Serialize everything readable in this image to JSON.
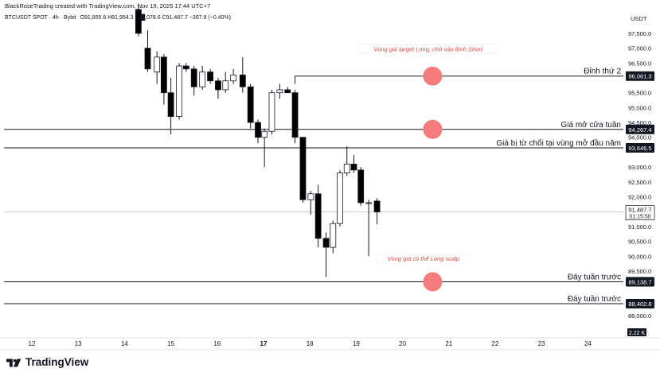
{
  "header": {
    "attribution": "BlackRoseTrading created with TradingView.com, Nov 19, 2025 17:44 UTC+7",
    "symbol": "BTCUSDT SPOT · 4h · Bybit",
    "ohlc": "O91,855.6  H91,954.3  L9█,078.6  C91,487.7  −367.9 (−0.40%)"
  },
  "logo": {
    "text": "TradingView"
  },
  "chart_data": {
    "type": "candlestick",
    "currency_label": "USDT",
    "y_range": [
      87600,
      98300
    ],
    "y_ticks": [
      "97,500.0",
      "97,000.0",
      "96,500.0",
      "96,000.0",
      "95,500.0",
      "95,000.0",
      "94,500.0",
      "94,000.0",
      "93,500.0",
      "93,000.0",
      "92,500.0",
      "92,000.0",
      "91,500.0",
      "91,000.0",
      "90,500.0",
      "90,000.0",
      "89,500.0",
      "89,000.0",
      "88,500.0",
      "88,000.0"
    ],
    "x_ticks": [
      "12",
      "13",
      "14",
      "15",
      "16",
      "17",
      "18",
      "19",
      "20",
      "21",
      "22",
      "23",
      "24"
    ],
    "x_ticks_bold": [
      "17"
    ],
    "candles": [
      {
        "x": 14.3,
        "o": 98300,
        "h": 98500,
        "l": 97400,
        "c": 97500
      },
      {
        "x": 14.5,
        "o": 97000,
        "h": 97600,
        "l": 96200,
        "c": 96300
      },
      {
        "x": 14.7,
        "o": 96200,
        "h": 96900,
        "l": 95800,
        "c": 96700
      },
      {
        "x": 14.85,
        "o": 96700,
        "h": 96800,
        "l": 95100,
        "c": 95500
      },
      {
        "x": 15.0,
        "o": 95500,
        "h": 96000,
        "l": 94100,
        "c": 94700
      },
      {
        "x": 15.18,
        "o": 94700,
        "h": 96500,
        "l": 94600,
        "c": 96400
      },
      {
        "x": 15.33,
        "o": 96400,
        "h": 96500,
        "l": 96200,
        "c": 96300
      },
      {
        "x": 15.5,
        "o": 96300,
        "h": 96400,
        "l": 95400,
        "c": 95700
      },
      {
        "x": 15.68,
        "o": 95700,
        "h": 96400,
        "l": 95600,
        "c": 96200
      },
      {
        "x": 15.85,
        "o": 96200,
        "h": 96300,
        "l": 95800,
        "c": 95900
      },
      {
        "x": 16.02,
        "o": 95900,
        "h": 96000,
        "l": 95300,
        "c": 95600
      },
      {
        "x": 16.18,
        "o": 95600,
        "h": 96200,
        "l": 95500,
        "c": 95900
      },
      {
        "x": 16.35,
        "o": 95900,
        "h": 96300,
        "l": 95800,
        "c": 96100
      },
      {
        "x": 16.55,
        "o": 96100,
        "h": 96700,
        "l": 95500,
        "c": 95700
      },
      {
        "x": 16.72,
        "o": 95700,
        "h": 95800,
        "l": 94300,
        "c": 94500
      },
      {
        "x": 16.88,
        "o": 94500,
        "h": 94600,
        "l": 93800,
        "c": 94000
      },
      {
        "x": 17.02,
        "o": 94000,
        "h": 94300,
        "l": 93000,
        "c": 94200
      },
      {
        "x": 17.18,
        "o": 94200,
        "h": 95600,
        "l": 94100,
        "c": 95500
      },
      {
        "x": 17.35,
        "o": 95500,
        "h": 95800,
        "l": 95300,
        "c": 95600
      },
      {
        "x": 17.52,
        "o": 95600,
        "h": 95700,
        "l": 95500,
        "c": 95500
      },
      {
        "x": 17.68,
        "o": 95500,
        "h": 95600,
        "l": 93800,
        "c": 94000
      },
      {
        "x": 17.85,
        "o": 94000,
        "h": 94000,
        "l": 91800,
        "c": 91900
      },
      {
        "x": 18.02,
        "o": 91900,
        "h": 92200,
        "l": 91400,
        "c": 92100
      },
      {
        "x": 18.18,
        "o": 92100,
        "h": 92400,
        "l": 90300,
        "c": 90600
      },
      {
        "x": 18.35,
        "o": 90600,
        "h": 90800,
        "l": 89300,
        "c": 90300
      },
      {
        "x": 18.5,
        "o": 90300,
        "h": 91200,
        "l": 90100,
        "c": 91100
      },
      {
        "x": 18.65,
        "o": 91100,
        "h": 92900,
        "l": 91000,
        "c": 92800
      },
      {
        "x": 18.8,
        "o": 92800,
        "h": 93700,
        "l": 92700,
        "c": 93100
      },
      {
        "x": 18.95,
        "o": 93100,
        "h": 93400,
        "l": 92800,
        "c": 92900
      },
      {
        "x": 19.1,
        "o": 92900,
        "h": 93000,
        "l": 91700,
        "c": 91800
      },
      {
        "x": 19.27,
        "o": 91800,
        "h": 91900,
        "l": 90000,
        "c": 91800
      },
      {
        "x": 19.45,
        "o": 91855.6,
        "h": 91954.3,
        "l": 91078.6,
        "c": 91487.7
      }
    ],
    "levels": [
      {
        "price": 96061.3,
        "label": "Đỉnh thứ 2",
        "tag": "96,061.3",
        "start_x": 17.68
      },
      {
        "price": 94267.4,
        "label": "Giá mở cửa tuần",
        "tag": "94,267.4",
        "start_x": 11.4
      },
      {
        "price": 93646.5,
        "label": "Giá bị từ chối tại vùng mở đầu năm",
        "tag": "93,646.5",
        "start_x": 11.4
      },
      {
        "price": 89138.7,
        "label": "Đáy tuần trước",
        "tag": "89,138.7",
        "start_x": 11.4
      },
      {
        "price": 88402.8,
        "label": "Đáy tuần trước",
        "tag": "88,402.8",
        "start_x": 11.4
      }
    ],
    "markers": [
      {
        "x": 20.65,
        "price": 96061.3,
        "color": "#f47c7c"
      },
      {
        "x": 20.65,
        "price": 94267.4,
        "color": "#f47c7c"
      },
      {
        "x": 20.65,
        "price": 89138.7,
        "color": "#f47c7c"
      }
    ],
    "notes": [
      {
        "text": "Vùng giá target Long, chờ vào lệnh Short",
        "x": 20.55,
        "price": 96950
      },
      {
        "text": "Vùng giá có thể Long scalp",
        "x": 20.45,
        "price": 89900
      }
    ],
    "current_price": {
      "price": 91487.7,
      "tag": "91,487.7",
      "countdown": "01:15:50"
    },
    "volume_tag": "2.22 K",
    "colors": {
      "up": "#ffffff",
      "down": "#000000",
      "wick": "#131722",
      "level": "#131722",
      "note": "#e0463f",
      "current_line": "#c8c8c8"
    }
  }
}
